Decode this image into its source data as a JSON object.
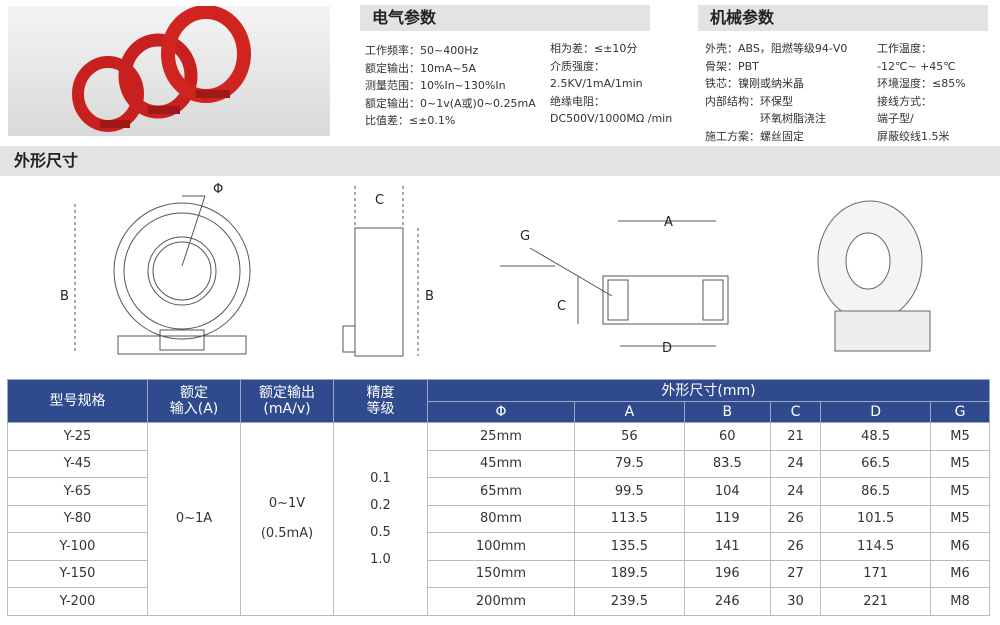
{
  "electrical": {
    "title": "电气参数",
    "left": [
      "工作频率：50~400Hz",
      "额定输出：10mA~5A",
      "测量范围：10%In~130%In",
      "额定输出：0~1v(A或)0~0.25mA",
      "比值差：≤±0.1%"
    ],
    "right": [
      "相为差：≤±10分",
      "介质强度：",
      "2.5KV/1mA/1min",
      "绝缘电阻：",
      "DC500V/1000MΩ /min"
    ]
  },
  "mechanical": {
    "title": "机械参数",
    "left": [
      "外壳：ABS，阻燃等级94-V0",
      "骨架：PBT",
      "铁芯：镍刚或纳米晶",
      "内部结构：环保型",
      "　　　　　环氧树脂浇注",
      "施工方案：螺丝固定"
    ],
    "right": [
      "工作温度：",
      "-12℃~ +45℃",
      "环境湿度：≤85%",
      "接线方式：",
      "端子型/",
      "屏蔽绞线1.5米"
    ]
  },
  "dimensions": {
    "title": "外形尺寸",
    "labels": {
      "phi": "Φ",
      "a": "A",
      "b": "B",
      "c": "C",
      "d": "D",
      "g": "G"
    }
  },
  "table": {
    "headers": {
      "model": "型号规格",
      "input": [
        "额定",
        "输入(A)"
      ],
      "output": [
        "额定输出",
        "(mA/v)"
      ],
      "accuracy": [
        "精度",
        "等级"
      ],
      "dims": "外形尺寸(mm)",
      "cols": [
        "Φ",
        "A",
        "B",
        "C",
        "D",
        "G"
      ]
    },
    "input_value": "0~1A",
    "output_value": [
      "0~1V",
      "(0.5mA)"
    ],
    "accuracy_values": [
      "0.1",
      "0.2",
      "0.5",
      "1.0"
    ],
    "rows": [
      [
        "Y-25",
        "25mm",
        "56",
        "60",
        "21",
        "48.5",
        "M5"
      ],
      [
        "Y-45",
        "45mm",
        "79.5",
        "83.5",
        "24",
        "66.5",
        "M5"
      ],
      [
        "Y-65",
        "65mm",
        "99.5",
        "104",
        "24",
        "86.5",
        "M5"
      ],
      [
        "Y-80",
        "80mm",
        "113.5",
        "119",
        "26",
        "101.5",
        "M5"
      ],
      [
        "Y-100",
        "100mm",
        "135.5",
        "141",
        "26",
        "114.5",
        "M6"
      ],
      [
        "Y-150",
        "150mm",
        "189.5",
        "196",
        "27",
        "171",
        "M6"
      ],
      [
        "Y-200",
        "200mm",
        "239.5",
        "246",
        "30",
        "221",
        "M8"
      ]
    ]
  }
}
